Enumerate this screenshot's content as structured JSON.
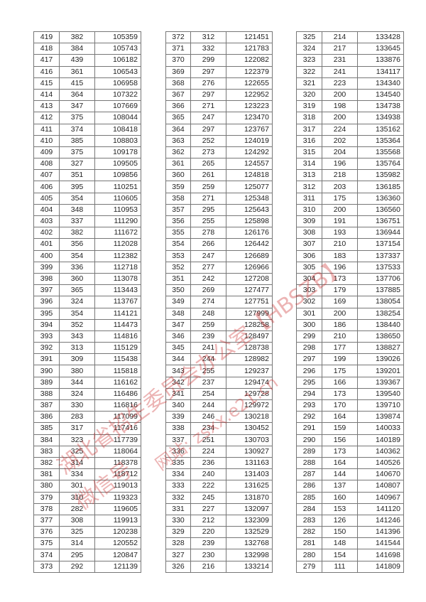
{
  "tables": [
    {
      "rows": [
        [
          419,
          382,
          105359
        ],
        [
          418,
          384,
          105743
        ],
        [
          417,
          439,
          106182
        ],
        [
          416,
          361,
          106543
        ],
        [
          415,
          415,
          106958
        ],
        [
          414,
          364,
          107322
        ],
        [
          413,
          347,
          107669
        ],
        [
          412,
          375,
          108044
        ],
        [
          411,
          374,
          108418
        ],
        [
          410,
          385,
          108803
        ],
        [
          409,
          375,
          109178
        ],
        [
          408,
          327,
          109505
        ],
        [
          407,
          351,
          109856
        ],
        [
          406,
          395,
          110251
        ],
        [
          405,
          354,
          110605
        ],
        [
          404,
          348,
          110953
        ],
        [
          403,
          337,
          111290
        ],
        [
          402,
          382,
          111672
        ],
        [
          401,
          356,
          112028
        ],
        [
          400,
          354,
          112382
        ],
        [
          399,
          336,
          112718
        ],
        [
          398,
          360,
          113078
        ],
        [
          397,
          365,
          113443
        ],
        [
          396,
          324,
          113767
        ],
        [
          395,
          354,
          114121
        ],
        [
          394,
          352,
          114473
        ],
        [
          393,
          343,
          114816
        ],
        [
          392,
          313,
          115129
        ],
        [
          391,
          309,
          115438
        ],
        [
          390,
          380,
          115818
        ],
        [
          389,
          344,
          116162
        ],
        [
          388,
          324,
          116486
        ],
        [
          387,
          330,
          116816
        ],
        [
          386,
          283,
          117099
        ],
        [
          385,
          317,
          117416
        ],
        [
          384,
          323,
          117739
        ],
        [
          383,
          325,
          118064
        ],
        [
          382,
          314,
          118378
        ],
        [
          381,
          334,
          118712
        ],
        [
          380,
          301,
          119013
        ],
        [
          379,
          310,
          119323
        ],
        [
          378,
          282,
          119605
        ],
        [
          377,
          308,
          119913
        ],
        [
          376,
          325,
          120238
        ],
        [
          375,
          314,
          120552
        ],
        [
          374,
          295,
          120847
        ],
        [
          373,
          292,
          121139
        ]
      ]
    },
    {
      "rows": [
        [
          372,
          312,
          121451
        ],
        [
          371,
          332,
          121783
        ],
        [
          370,
          299,
          122082
        ],
        [
          369,
          297,
          122379
        ],
        [
          368,
          276,
          122655
        ],
        [
          367,
          297,
          122952
        ],
        [
          366,
          271,
          123223
        ],
        [
          365,
          247,
          123470
        ],
        [
          364,
          297,
          123767
        ],
        [
          363,
          252,
          124019
        ],
        [
          362,
          273,
          124292
        ],
        [
          361,
          265,
          124557
        ],
        [
          360,
          261,
          124818
        ],
        [
          359,
          259,
          125077
        ],
        [
          358,
          271,
          125348
        ],
        [
          357,
          295,
          125643
        ],
        [
          356,
          255,
          125898
        ],
        [
          355,
          278,
          126176
        ],
        [
          354,
          266,
          126442
        ],
        [
          353,
          247,
          126689
        ],
        [
          352,
          277,
          126966
        ],
        [
          351,
          242,
          127208
        ],
        [
          350,
          269,
          127477
        ],
        [
          349,
          274,
          127751
        ],
        [
          348,
          248,
          127999
        ],
        [
          347,
          259,
          128258
        ],
        [
          346,
          239,
          128497
        ],
        [
          345,
          241,
          128738
        ],
        [
          344,
          244,
          128982
        ],
        [
          343,
          255,
          129237
        ],
        [
          342,
          237,
          129474
        ],
        [
          341,
          254,
          129728
        ],
        [
          340,
          244,
          129972
        ],
        [
          339,
          246,
          130218
        ],
        [
          338,
          234,
          130452
        ],
        [
          337,
          251,
          130703
        ],
        [
          336,
          224,
          130927
        ],
        [
          335,
          236,
          131163
        ],
        [
          334,
          240,
          131403
        ],
        [
          333,
          222,
          131625
        ],
        [
          332,
          245,
          131870
        ],
        [
          331,
          227,
          132097
        ],
        [
          330,
          212,
          132309
        ],
        [
          329,
          220,
          132529
        ],
        [
          328,
          239,
          132768
        ],
        [
          327,
          230,
          132998
        ],
        [
          326,
          216,
          133214
        ]
      ]
    },
    {
      "rows": [
        [
          325,
          214,
          133428
        ],
        [
          324,
          217,
          133645
        ],
        [
          323,
          231,
          133876
        ],
        [
          322,
          241,
          134117
        ],
        [
          321,
          223,
          134340
        ],
        [
          320,
          200,
          134540
        ],
        [
          319,
          198,
          134738
        ],
        [
          318,
          200,
          134938
        ],
        [
          317,
          224,
          135162
        ],
        [
          316,
          202,
          135364
        ],
        [
          315,
          204,
          135568
        ],
        [
          314,
          196,
          135764
        ],
        [
          313,
          218,
          135982
        ],
        [
          312,
          203,
          136185
        ],
        [
          311,
          175,
          136360
        ],
        [
          310,
          200,
          136560
        ],
        [
          309,
          191,
          136751
        ],
        [
          308,
          193,
          136944
        ],
        [
          307,
          210,
          137154
        ],
        [
          306,
          183,
          137337
        ],
        [
          305,
          196,
          137533
        ],
        [
          304,
          173,
          137706
        ],
        [
          303,
          179,
          137885
        ],
        [
          302,
          169,
          138054
        ],
        [
          301,
          200,
          138254
        ],
        [
          300,
          186,
          138440
        ],
        [
          299,
          210,
          138650
        ],
        [
          298,
          177,
          138827
        ],
        [
          297,
          199,
          139026
        ],
        [
          296,
          175,
          139201
        ],
        [
          295,
          166,
          139367
        ],
        [
          294,
          173,
          139540
        ],
        [
          293,
          170,
          139710
        ],
        [
          292,
          164,
          139874
        ],
        [
          291,
          159,
          140033
        ],
        [
          290,
          156,
          140189
        ],
        [
          289,
          173,
          140362
        ],
        [
          288,
          164,
          140526
        ],
        [
          287,
          144,
          140670
        ],
        [
          286,
          137,
          140807
        ],
        [
          285,
          160,
          140967
        ],
        [
          284,
          153,
          141120
        ],
        [
          283,
          126,
          141246
        ],
        [
          282,
          150,
          141396
        ],
        [
          281,
          148,
          141544
        ],
        [
          280,
          154,
          141698
        ],
        [
          279,
          111,
          141809
        ]
      ]
    }
  ],
  "watermark": {
    "line1": "湖北省招生委员会办公室【HBSZB】",
    "line2": "微信号",
    "line3": "网站: zsxx.e21.cn",
    "color": "#c82828"
  }
}
